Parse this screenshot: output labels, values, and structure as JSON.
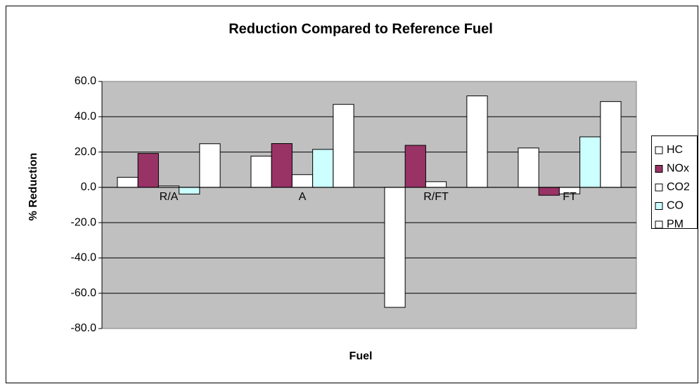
{
  "chart_data": {
    "type": "bar",
    "title": "Reduction Compared to Reference Fuel",
    "x_label": "Fuel",
    "y_label": "% Reduction",
    "categories": [
      "R/A",
      "A",
      "R/FT",
      "FT"
    ],
    "series": [
      {
        "name": "HC",
        "color": "#ffffff",
        "values": [
          5.7,
          17.7,
          -68.0,
          22.3
        ]
      },
      {
        "name": "NOx",
        "color": "#993366",
        "values": [
          19.2,
          24.8,
          23.8,
          -4.5
        ]
      },
      {
        "name": "CO2",
        "color": "#ffffff",
        "values": [
          0.8,
          7.2,
          3.2,
          -3.7
        ]
      },
      {
        "name": "CO",
        "color": "#ccffff",
        "values": [
          -3.8,
          21.5,
          0,
          28.6
        ]
      },
      {
        "name": "PM",
        "color": "#ffffff",
        "values": [
          24.7,
          47.0,
          51.8,
          48.6
        ]
      }
    ],
    "ylim": [
      -80,
      60
    ],
    "yticks": [
      {
        "value": -80,
        "label": "-80.0"
      },
      {
        "value": -60,
        "label": "-60.0"
      },
      {
        "value": -40,
        "label": "-40.0"
      },
      {
        "value": -20,
        "label": "-20.0"
      },
      {
        "value": 0,
        "label": "0.0"
      },
      {
        "value": 20,
        "label": "20.0"
      },
      {
        "value": 40,
        "label": "40.0"
      },
      {
        "value": 60,
        "label": "60.0"
      }
    ],
    "grid": true,
    "legend": "right"
  }
}
